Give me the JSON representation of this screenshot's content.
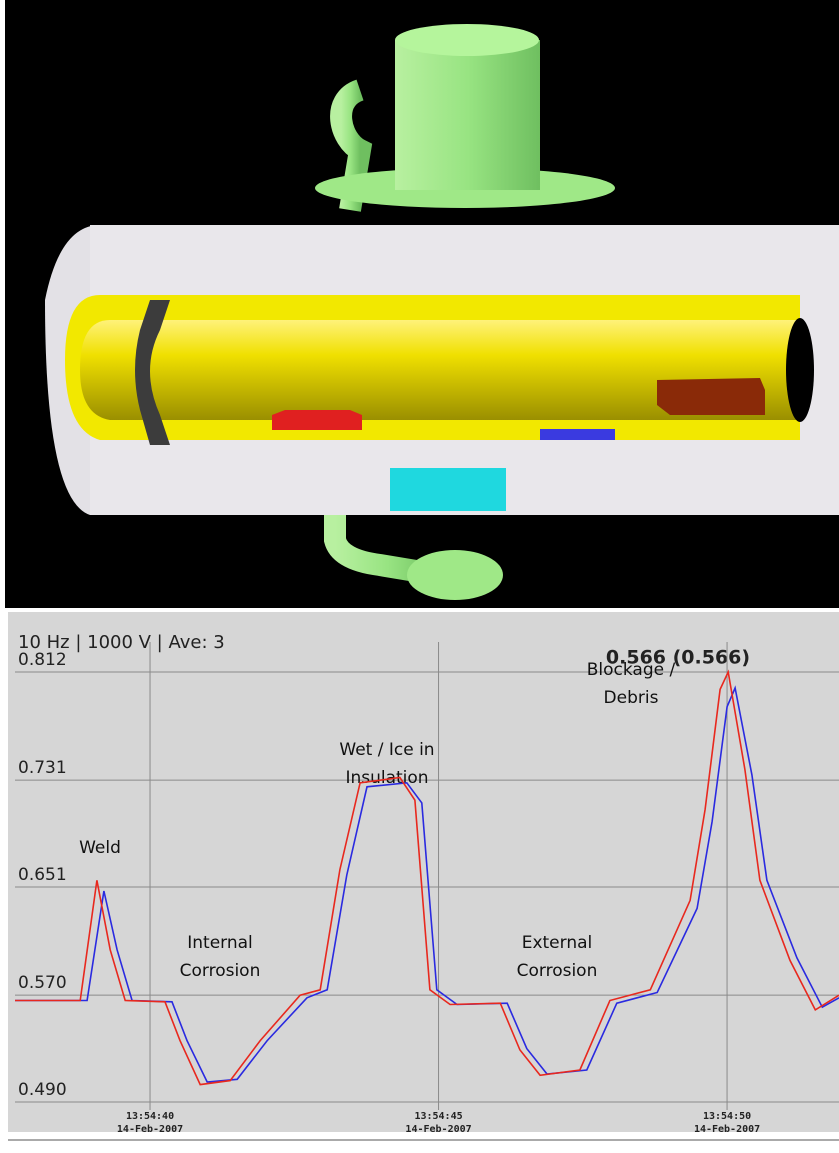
{
  "chart_data": {
    "type": "line",
    "subtitle": "10 Hz | 1000 V | Ave: 3",
    "title": "0.566 (0.566)",
    "xlim": [
      37.66,
      51.94
    ],
    "ylim": [
      0.49,
      0.812
    ],
    "yticks": [
      {
        "value": 0.49,
        "label": "0.490"
      },
      {
        "value": 0.57,
        "label": "0.570"
      },
      0.651,
      0.731,
      0.812
    ],
    "xticks": [
      {
        "value": 40,
        "label": "13:54:40",
        "date": "14-Feb-2007"
      },
      {
        "value": 45,
        "label": "13:54:45",
        "date": "14-Feb-2007"
      },
      {
        "value": 50,
        "label": "13:54:50",
        "date": "14-Feb-2007"
      }
    ],
    "grid": true,
    "annotations": [
      [
        "Weld"
      ],
      [
        "Internal",
        "Corrosion"
      ],
      [
        "Wet / Ice in",
        "Insulation"
      ],
      [
        "External",
        "Corrosion"
      ],
      [
        "Blockage /",
        "Debris"
      ]
    ],
    "series": [
      {
        "color": "#e8281e",
        "x": [
          37.66,
          38.79,
          39.08,
          39.31,
          39.57,
          40.26,
          40.52,
          40.87,
          41.39,
          41.91,
          42.6,
          42.95,
          43.29,
          43.64,
          44.33,
          44.59,
          44.85,
          45.2,
          46.07,
          46.41,
          46.76,
          47.45,
          47.97,
          48.67,
          49.36,
          49.62,
          49.88,
          50.02,
          50.31,
          50.57,
          51.09,
          51.53,
          51.94
        ],
        "values": [
          0.566,
          0.566,
          0.656,
          0.604,
          0.566,
          0.565,
          0.536,
          0.503,
          0.506,
          0.536,
          0.57,
          0.574,
          0.664,
          0.729,
          0.733,
          0.716,
          0.574,
          0.563,
          0.564,
          0.529,
          0.51,
          0.514,
          0.566,
          0.574,
          0.641,
          0.709,
          0.799,
          0.812,
          0.739,
          0.656,
          0.596,
          0.559,
          0.57
        ]
      },
      {
        "color": "#2a2ae0",
        "x": [
          37.66,
          38.91,
          39.2,
          39.43,
          39.69,
          40.38,
          40.64,
          40.99,
          41.51,
          42.03,
          42.72,
          43.07,
          43.41,
          43.76,
          44.45,
          44.71,
          44.97,
          45.32,
          46.19,
          46.53,
          46.88,
          47.57,
          48.09,
          48.79,
          49.48,
          49.74,
          50.0,
          50.14,
          50.43,
          50.69,
          51.21,
          51.65,
          51.94
        ],
        "values": [
          0.566,
          0.566,
          0.648,
          0.604,
          0.566,
          0.565,
          0.536,
          0.505,
          0.507,
          0.536,
          0.568,
          0.574,
          0.66,
          0.726,
          0.729,
          0.714,
          0.574,
          0.563,
          0.564,
          0.53,
          0.511,
          0.514,
          0.564,
          0.572,
          0.635,
          0.7,
          0.786,
          0.8,
          0.735,
          0.656,
          0.598,
          0.561,
          0.568
        ]
      }
    ]
  }
}
